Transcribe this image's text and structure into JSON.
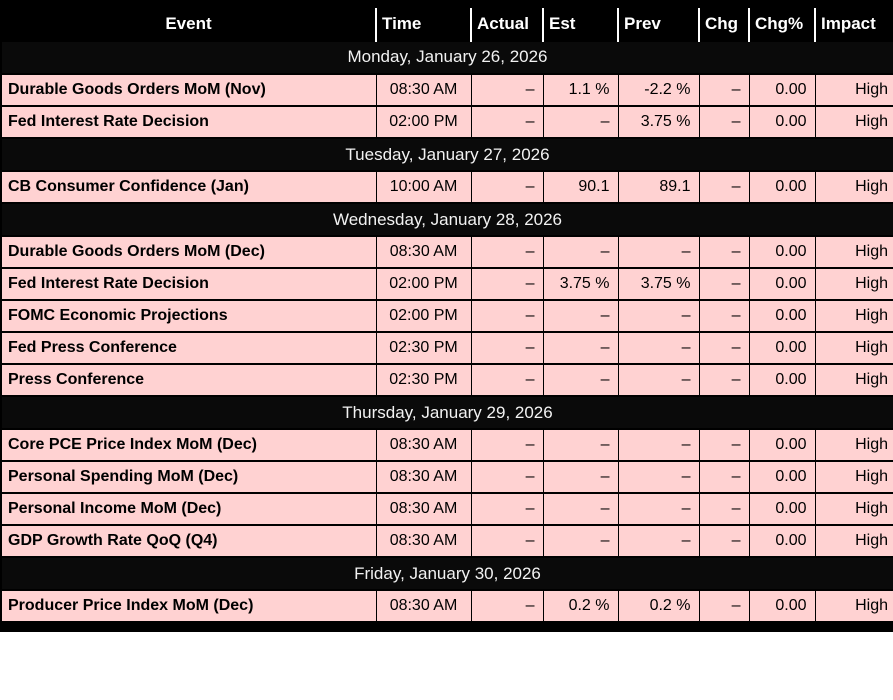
{
  "colors": {
    "row_pink": "#ffd2d2",
    "header_black": "#000000",
    "day_separator_black": "#0a0a0a",
    "header_text_white": "#ffffff",
    "day_text_white": "#f2f2f2",
    "cell_text_black": "#000000"
  },
  "table": {
    "columns": [
      {
        "key": "event",
        "label": "Event"
      },
      {
        "key": "time",
        "label": "Time"
      },
      {
        "key": "actual",
        "label": "Actual"
      },
      {
        "key": "est",
        "label": "Est"
      },
      {
        "key": "prev",
        "label": "Prev"
      },
      {
        "key": "chg",
        "label": "Chg"
      },
      {
        "key": "chgpct",
        "label": "Chg%"
      },
      {
        "key": "impact",
        "label": "Impact"
      }
    ],
    "sections": [
      {
        "date": "Monday, January 26, 2026",
        "rows": [
          {
            "event": "Durable Goods Orders MoM (Nov)",
            "time": "08:30 AM",
            "actual": "–",
            "est": "1.1 %",
            "prev": "-2.2 %",
            "chg": "–",
            "chgpct": "0.00",
            "impact": "High"
          },
          {
            "event": "Fed Interest Rate Decision",
            "time": "02:00 PM",
            "actual": "–",
            "est": "–",
            "prev": "3.75 %",
            "chg": "–",
            "chgpct": "0.00",
            "impact": "High"
          }
        ]
      },
      {
        "date": "Tuesday, January 27, 2026",
        "rows": [
          {
            "event": "CB Consumer Confidence (Jan)",
            "time": "10:00 AM",
            "actual": "–",
            "est": "90.1",
            "prev": "89.1",
            "chg": "–",
            "chgpct": "0.00",
            "impact": "High"
          }
        ]
      },
      {
        "date": "Wednesday, January 28, 2026",
        "rows": [
          {
            "event": "Durable Goods Orders MoM (Dec)",
            "time": "08:30 AM",
            "actual": "–",
            "est": "–",
            "prev": "–",
            "chg": "–",
            "chgpct": "0.00",
            "impact": "High"
          },
          {
            "event": "Fed Interest Rate Decision",
            "time": "02:00 PM",
            "actual": "–",
            "est": "3.75 %",
            "prev": "3.75 %",
            "chg": "–",
            "chgpct": "0.00",
            "impact": "High"
          },
          {
            "event": "FOMC Economic Projections",
            "time": "02:00 PM",
            "actual": "–",
            "est": "–",
            "prev": "–",
            "chg": "–",
            "chgpct": "0.00",
            "impact": "High"
          },
          {
            "event": "Fed Press Conference",
            "time": "02:30 PM",
            "actual": "–",
            "est": "–",
            "prev": "–",
            "chg": "–",
            "chgpct": "0.00",
            "impact": "High"
          },
          {
            "event": "Press Conference",
            "time": "02:30 PM",
            "actual": "–",
            "est": "–",
            "prev": "–",
            "chg": "–",
            "chgpct": "0.00",
            "impact": "High"
          }
        ]
      },
      {
        "date": "Thursday, January 29, 2026",
        "rows": [
          {
            "event": "Core PCE Price Index MoM (Dec)",
            "time": "08:30 AM",
            "actual": "–",
            "est": "–",
            "prev": "–",
            "chg": "–",
            "chgpct": "0.00",
            "impact": "High"
          },
          {
            "event": "Personal Spending MoM (Dec)",
            "time": "08:30 AM",
            "actual": "–",
            "est": "–",
            "prev": "–",
            "chg": "–",
            "chgpct": "0.00",
            "impact": "High"
          },
          {
            "event": "Personal Income MoM (Dec)",
            "time": "08:30 AM",
            "actual": "–",
            "est": "–",
            "prev": "–",
            "chg": "–",
            "chgpct": "0.00",
            "impact": "High"
          },
          {
            "event": "GDP Growth Rate QoQ (Q4)",
            "time": "08:30 AM",
            "actual": "–",
            "est": "–",
            "prev": "–",
            "chg": "–",
            "chgpct": "0.00",
            "impact": "High"
          }
        ]
      },
      {
        "date": "Friday, January 30, 2026",
        "rows": [
          {
            "event": "Producer Price Index MoM (Dec)",
            "time": "08:30 AM",
            "actual": "–",
            "est": "0.2 %",
            "prev": "0.2 %",
            "chg": "–",
            "chgpct": "0.00",
            "impact": "High"
          }
        ]
      }
    ]
  }
}
